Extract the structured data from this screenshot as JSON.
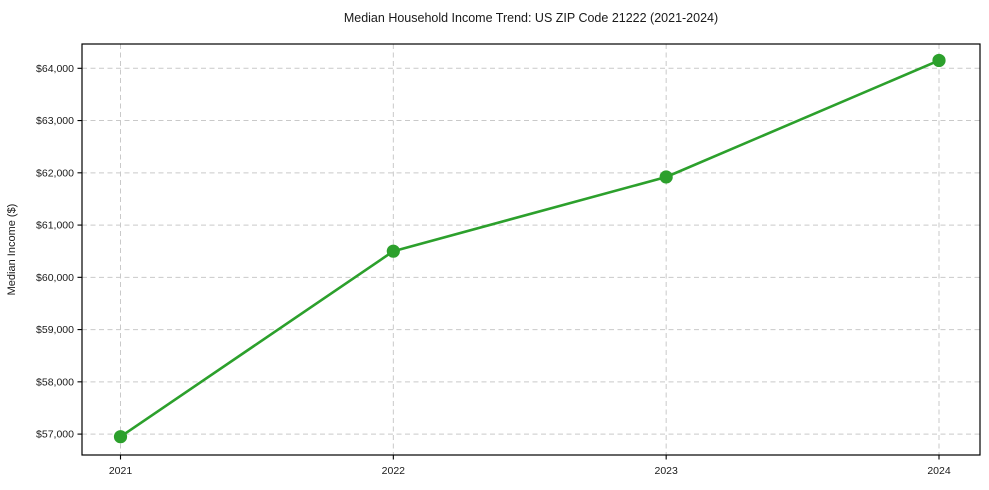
{
  "chart": {
    "title": "Median Household Income Trend: US ZIP Code 21222 (2021-2024)",
    "ylabel": "Median Income ($)"
  },
  "chart_data": {
    "type": "line",
    "title": "Median Household Income Trend: US ZIP Code 21222 (2021-2024)",
    "xlabel": "",
    "ylabel": "Median Income ($)",
    "x": [
      2021,
      2022,
      2023,
      2024
    ],
    "xtick_labels": [
      "2021",
      "2022",
      "2023",
      "2024"
    ],
    "series": [
      {
        "name": "Median Household Income",
        "values": [
          56950,
          60500,
          61920,
          64150
        ],
        "color": "#2ca02c",
        "marker": "circle"
      }
    ],
    "yticks": [
      57000,
      58000,
      59000,
      60000,
      61000,
      62000,
      63000,
      64000
    ],
    "ytick_labels": [
      "$57,000",
      "$58,000",
      "$59,000",
      "$60,000",
      "$61,000",
      "$62,000",
      "$63,000",
      "$64,000"
    ],
    "ylim": [
      56600,
      64465
    ],
    "grid": true,
    "grid_style": "dashed",
    "legend": null,
    "line_color": "#2ca02c",
    "background_color": "#ffffff"
  }
}
